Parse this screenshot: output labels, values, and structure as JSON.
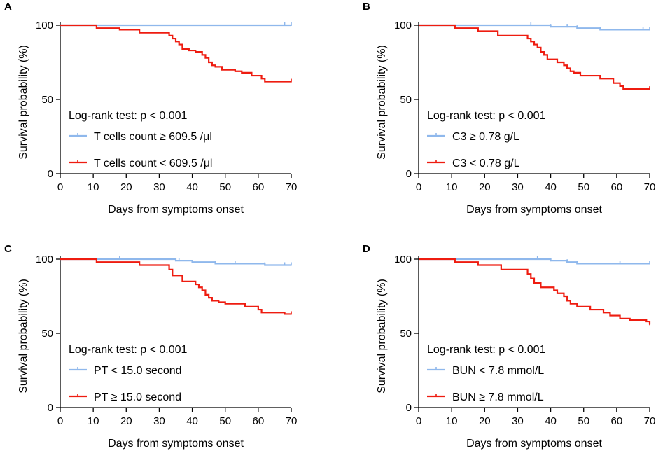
{
  "colors": {
    "blue": "#8fb8ec",
    "red": "#ee1c10",
    "axis": "#000000"
  },
  "chart_data": [
    {
      "type": "line",
      "panel": "A",
      "title": "",
      "xlabel": "Days from  symptoms onset",
      "ylabel": "Survival probability (%)",
      "xlim": [
        0,
        70
      ],
      "ylim": [
        0,
        100
      ],
      "xticks": [
        0,
        10,
        20,
        30,
        40,
        50,
        60,
        70
      ],
      "yticks": [
        0,
        50,
        100
      ],
      "annotation": "Log-rank test: p < 0.001",
      "series": [
        {
          "name": "T cells count ≥ 609.5 /μl",
          "color": "blue",
          "x": [
            0,
            70
          ],
          "y": [
            100,
            100
          ],
          "censor_x": [
            68,
            70
          ]
        },
        {
          "name": "T cells count < 609.5 /μl",
          "color": "red",
          "x": [
            0,
            11,
            18,
            24,
            33,
            34,
            35,
            36,
            37,
            39,
            41,
            43,
            44,
            45,
            46,
            47,
            49,
            53,
            55,
            58,
            61,
            62,
            70
          ],
          "y": [
            100,
            98,
            97,
            95,
            93,
            91,
            89,
            87,
            84,
            83,
            82,
            80,
            78,
            75,
            73,
            72,
            70,
            69,
            68,
            66,
            64,
            62,
            62
          ],
          "censor_x": [
            70
          ]
        }
      ]
    },
    {
      "type": "line",
      "panel": "B",
      "title": "",
      "xlabel": "Days from  symptoms onset",
      "ylabel": "Survival probability (%)",
      "xlim": [
        0,
        70
      ],
      "ylim": [
        0,
        100
      ],
      "xticks": [
        0,
        10,
        20,
        30,
        40,
        50,
        60,
        70
      ],
      "yticks": [
        0,
        50,
        100
      ],
      "annotation": "Log-rank test: p < 0.001",
      "series": [
        {
          "name": "C3 ≥ 0.78 g/L",
          "color": "blue",
          "x": [
            0,
            35,
            40,
            45,
            48,
            55,
            68,
            70
          ],
          "y": [
            100,
            100,
            99,
            99,
            98,
            97,
            97,
            97
          ],
          "censor_x": [
            34,
            40,
            45,
            48,
            55,
            68,
            70
          ]
        },
        {
          "name": "C3 < 0.78 g/L",
          "color": "red",
          "x": [
            0,
            11,
            18,
            24,
            33,
            34,
            35,
            36,
            37,
            38,
            39,
            42,
            44,
            45,
            46,
            47,
            49,
            55,
            59,
            61,
            62,
            70
          ],
          "y": [
            100,
            98,
            96,
            93,
            91,
            89,
            87,
            85,
            82,
            80,
            77,
            75,
            73,
            71,
            69,
            68,
            66,
            64,
            61,
            59,
            57,
            57
          ],
          "censor_x": [
            70
          ]
        }
      ]
    },
    {
      "type": "line",
      "panel": "C",
      "title": "",
      "xlabel": "Days from  symptoms onset",
      "ylabel": "Survival probability (%)",
      "xlim": [
        0,
        70
      ],
      "ylim": [
        0,
        100
      ],
      "xticks": [
        0,
        10,
        20,
        30,
        40,
        50,
        60,
        70
      ],
      "yticks": [
        0,
        50,
        100
      ],
      "annotation": "Log-rank test: p < 0.001",
      "series": [
        {
          "name": "PT < 15.0 second",
          "color": "blue",
          "x": [
            0,
            35,
            40,
            47,
            53,
            62,
            70
          ],
          "y": [
            100,
            99,
            98,
            97,
            97,
            96,
            96
          ],
          "censor_x": [
            18,
            35,
            36,
            47,
            53,
            62,
            68,
            70
          ]
        },
        {
          "name": "PT ≥ 15.0 second",
          "color": "red",
          "x": [
            0,
            11,
            18,
            24,
            33,
            34,
            37,
            41,
            42,
            43,
            44,
            45,
            46,
            48,
            50,
            56,
            60,
            61,
            68,
            70
          ],
          "y": [
            100,
            98,
            98,
            96,
            93,
            89,
            85,
            83,
            81,
            79,
            76,
            74,
            72,
            71,
            70,
            68,
            66,
            64,
            63,
            63
          ],
          "censor_x": [
            70
          ]
        }
      ]
    },
    {
      "type": "line",
      "panel": "D",
      "title": "",
      "xlabel": "Days from  symptoms onset",
      "ylabel": "Survival probability (%)",
      "xlim": [
        0,
        70
      ],
      "ylim": [
        0,
        100
      ],
      "xticks": [
        0,
        10,
        20,
        30,
        40,
        50,
        60,
        70
      ],
      "yticks": [
        0,
        50,
        100
      ],
      "annotation": "Log-rank test: p < 0.001",
      "series": [
        {
          "name": "BUN < 7.8 mmol/L",
          "color": "blue",
          "x": [
            0,
            36,
            40,
            45,
            48,
            70
          ],
          "y": [
            100,
            100,
            99,
            98,
            97,
            97
          ],
          "censor_x": [
            36,
            40,
            45,
            48,
            61,
            70
          ]
        },
        {
          "name": "BUN ≥ 7.8 mmol/L",
          "color": "red",
          "x": [
            0,
            11,
            18,
            25,
            33,
            34,
            35,
            37,
            41,
            42,
            44,
            45,
            46,
            48,
            52,
            56,
            58,
            61,
            64,
            69,
            70
          ],
          "y": [
            100,
            98,
            96,
            93,
            90,
            87,
            84,
            81,
            79,
            77,
            75,
            72,
            70,
            68,
            66,
            64,
            62,
            60,
            59,
            58,
            56
          ],
          "censor_x": [
            70
          ]
        }
      ]
    }
  ]
}
